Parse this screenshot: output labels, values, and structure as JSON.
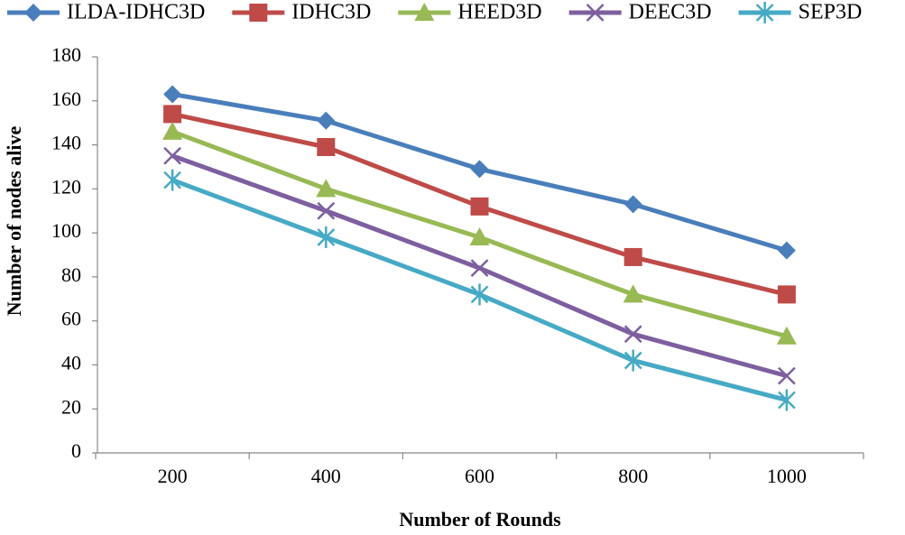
{
  "chart_data": {
    "type": "line",
    "x_label": "Number of Rounds",
    "y_label": "Number of nodes alive",
    "categories": [
      200,
      400,
      600,
      800,
      1000
    ],
    "series": [
      {
        "name": "ILDA-IDHC3D",
        "color": "#4a7ebb",
        "marker": "diamond",
        "values": [
          163,
          151,
          129,
          113,
          92
        ]
      },
      {
        "name": "IDHC3D",
        "color": "#be4b48",
        "marker": "square",
        "values": [
          154,
          139,
          112,
          89,
          72
        ]
      },
      {
        "name": "HEED3D",
        "color": "#98b954",
        "marker": "triangle",
        "values": [
          146,
          120,
          98,
          72,
          53
        ]
      },
      {
        "name": "DEEC3D",
        "color": "#7d5fa0",
        "marker": "x",
        "values": [
          135,
          110,
          84,
          54,
          35
        ]
      },
      {
        "name": "SEP3D",
        "color": "#46aac5",
        "marker": "star",
        "values": [
          124,
          98,
          72,
          42,
          24
        ]
      }
    ],
    "ylim": [
      0,
      180
    ],
    "yticks": [
      0,
      20,
      40,
      60,
      80,
      100,
      120,
      140,
      160,
      180
    ],
    "legend": "top"
  }
}
